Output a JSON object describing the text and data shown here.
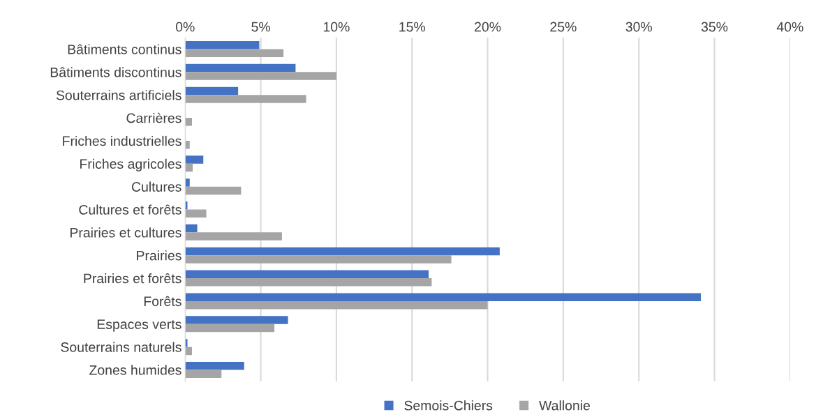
{
  "chart_data": {
    "type": "bar",
    "orientation": "horizontal",
    "categories": [
      "Bâtiments continus",
      "Bâtiments discontinus",
      "Souterrains artificiels",
      "Carrières",
      "Friches industrielles",
      "Friches agricoles",
      "Cultures",
      "Cultures et forêts",
      "Prairies et cultures",
      "Prairies",
      "Prairies et forêts",
      "Forêts",
      "Espaces verts",
      "Souterrains naturels",
      "Zones humides"
    ],
    "series": [
      {
        "name": "Semois-Chiers",
        "color": "#4472c4",
        "values": [
          4.9,
          7.3,
          3.5,
          0,
          0,
          1.2,
          0.3,
          0.15,
          0.8,
          20.8,
          16.1,
          34.1,
          6.8,
          0.15,
          3.9
        ]
      },
      {
        "name": "Wallonie",
        "color": "#a5a5a5",
        "values": [
          6.5,
          10.0,
          8.0,
          0.45,
          0.3,
          0.5,
          3.7,
          1.4,
          6.4,
          17.6,
          16.3,
          20.0,
          5.9,
          0.45,
          2.4
        ]
      }
    ],
    "xlim": [
      0,
      40
    ],
    "xticks": [
      {
        "value": 0,
        "label": "0%"
      },
      {
        "value": 5,
        "label": "5%"
      },
      {
        "value": 10,
        "label": "10%"
      },
      {
        "value": 15,
        "label": "15%"
      },
      {
        "value": 20,
        "label": "20%"
      },
      {
        "value": 25,
        "label": "25%"
      },
      {
        "value": 30,
        "label": "30%"
      },
      {
        "value": 35,
        "label": "35%"
      },
      {
        "value": 40,
        "label": "40%"
      }
    ],
    "grid": "x",
    "legend": "bottom"
  }
}
